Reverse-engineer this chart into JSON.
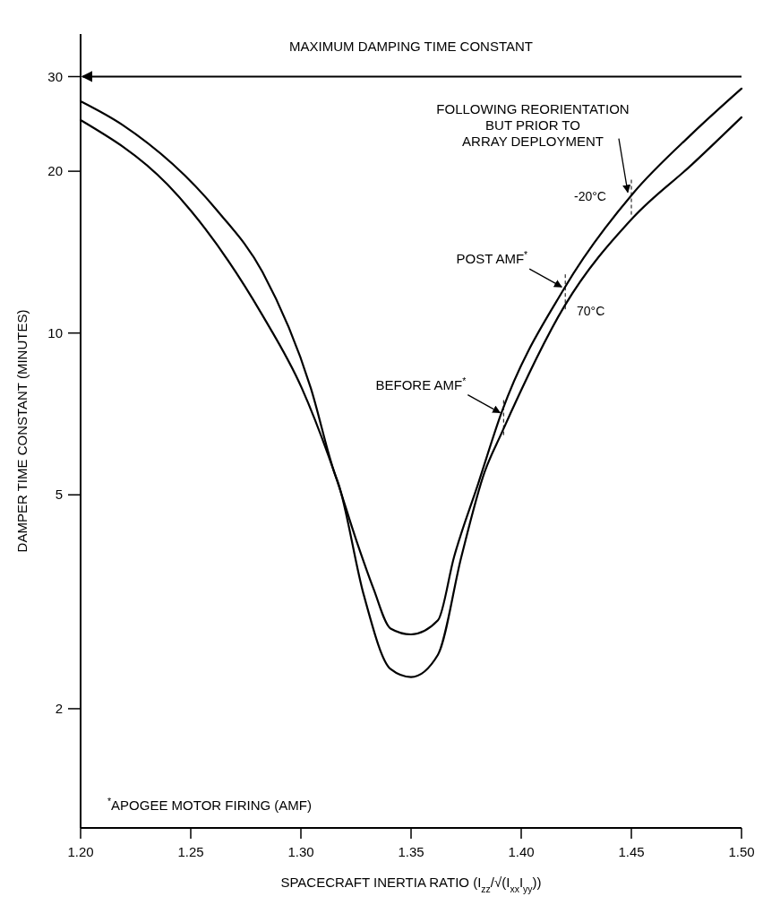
{
  "chart_data": {
    "type": "line",
    "xlabel": "SPACECRAFT INERTIA RATIO (I$_{zz}$/√(I$_{xx}$I$_{yy}$))",
    "ylabel": "DAMPER TIME CONSTANT (MINUTES)",
    "log": true,
    "grid": false,
    "marker": "none",
    "line_style": "solid",
    "xlim": [
      1.2,
      1.5
    ],
    "xticks": [
      {
        "value": 1.2,
        "label": "1.20"
      },
      {
        "value": 1.25,
        "label": "1.25"
      },
      {
        "value": 1.3,
        "label": "1.30"
      },
      {
        "value": 1.35,
        "label": "1.35"
      },
      {
        "value": 1.4,
        "label": "1.40"
      },
      {
        "value": 1.45,
        "label": "1.45"
      },
      {
        "value": 1.5,
        "label": "1.50"
      }
    ],
    "ylim": [
      1.2,
      36
    ],
    "yticks": [
      2,
      5,
      10,
      20,
      30
    ],
    "series": [
      {
        "name": "-20°C",
        "color": "#000000",
        "x": [
          1.2,
          1.2394,
          1.25,
          1.2825,
          1.3004,
          1.3154,
          1.3252,
          1.3329,
          1.3407,
          1.35,
          1.3622,
          1.3695,
          1.3805,
          1.391,
          1.4195,
          1.4508,
          1.4776,
          1.5
        ],
        "values": [
          24.9,
          18.9,
          16.9,
          10.8,
          7.9,
          5.47,
          4.11,
          3.35,
          2.82,
          2.75,
          2.92,
          3.83,
          5.25,
          7.1,
          12.1,
          18.2,
          23.5,
          28.5
        ]
      },
      {
        "name": "70°C",
        "color": "#000000",
        "x": [
          1.2,
          1.219,
          1.262,
          1.2825,
          1.3045,
          1.3154,
          1.317,
          1.3285,
          1.3407,
          1.35,
          1.3622,
          1.3728,
          1.3833,
          1.391,
          1.4195,
          1.4508,
          1.4776,
          1.5
        ],
        "values": [
          27.0,
          24.4,
          16.9,
          13.0,
          7.9,
          5.47,
          5.25,
          3.26,
          2.37,
          2.29,
          2.52,
          3.83,
          5.5,
          6.5,
          11.2,
          16.4,
          20.6,
          25.2
        ]
      }
    ],
    "ref_lines": [
      {
        "axis": "y",
        "value": 30,
        "label": "MAXIMUM DAMPING TIME CONSTANT",
        "color": "#000000"
      }
    ],
    "annotations": [
      {
        "text": "FOLLOWING REORIENTATION\nBUT PRIOR TO\nARRAY DEPLOYMENT",
        "x": 1.45,
        "y": 18
      },
      {
        "text": "POST AMF$^{*}$",
        "x": 1.42,
        "y": 12
      },
      {
        "text": "BEFORE AMF$^{*}$",
        "x": 1.392,
        "y": 7
      },
      "$^{*}$APOGEE MOTOR FIRING (AMF)"
    ]
  }
}
